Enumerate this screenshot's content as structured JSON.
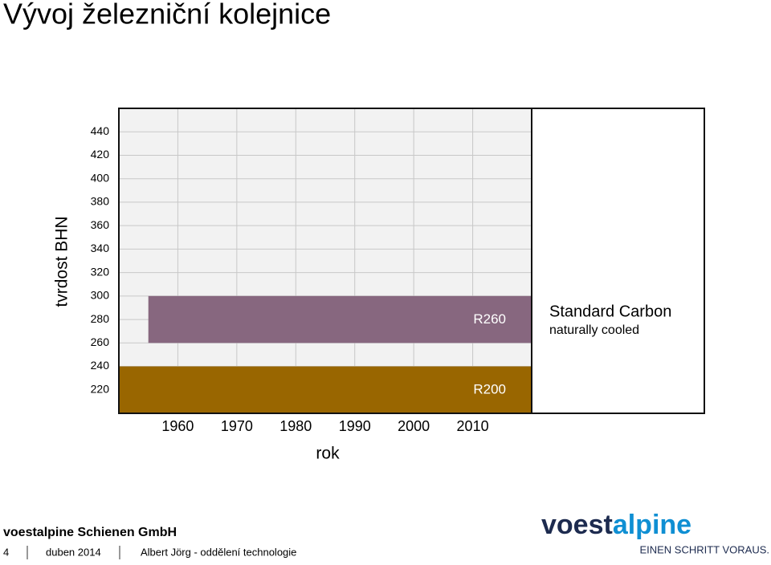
{
  "slide_title": "Vývoj železniční kolejnice",
  "chart_data": {
    "type": "range",
    "ylabel": "tvrdost BHN",
    "xlabel": "rok",
    "xlim": [
      1950,
      2020
    ],
    "xticks": [
      1960,
      1970,
      1980,
      1990,
      2000,
      2010
    ],
    "ylim": [
      200,
      460
    ],
    "yticks": [
      220,
      240,
      260,
      280,
      300,
      320,
      340,
      360,
      380,
      400,
      420,
      440
    ],
    "grid": true,
    "bars": [
      {
        "name": "R200",
        "color": "#996600",
        "start": 1950,
        "end": 2020,
        "low": 200,
        "high": 240
      },
      {
        "name": "R260",
        "color": "#87677f",
        "start": 1955,
        "end": 2020,
        "low": 260,
        "high": 300
      }
    ],
    "legend": {
      "title": "Standard Carbon",
      "subtitle": "naturally cooled"
    }
  },
  "footer": {
    "company": "voestalpine Schienen GmbH",
    "page": "4",
    "date": "duben 2014",
    "author": "Albert Jörg - oddělení technologie",
    "logo_a": "voest",
    "logo_b": "alpine",
    "tagline": "EINEN SCHRITT VORAUS."
  }
}
